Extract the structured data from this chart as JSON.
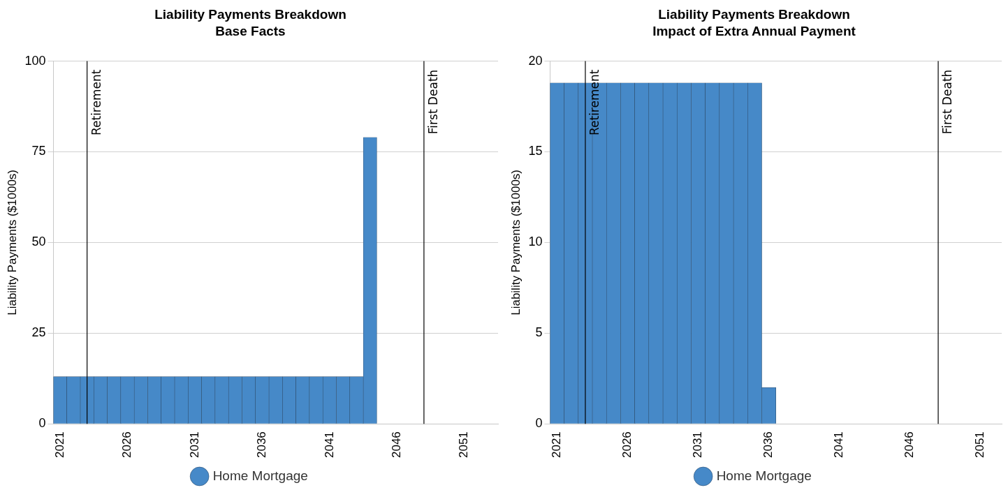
{
  "chart_data": [
    {
      "type": "bar",
      "title": "Liability Payments Breakdown",
      "subtitle": "Base Facts",
      "ylabel": "Liability Payments ($1000s)",
      "x": [
        2021,
        2022,
        2023,
        2024,
        2025,
        2026,
        2027,
        2028,
        2029,
        2030,
        2031,
        2032,
        2033,
        2034,
        2035,
        2036,
        2037,
        2038,
        2039,
        2040,
        2041,
        2042,
        2043,
        2044
      ],
      "series": [
        {
          "name": "Home Mortgage",
          "color": "#4689c8",
          "values": [
            13,
            13,
            13,
            13,
            13,
            13,
            13,
            13,
            13,
            13,
            13,
            13,
            13,
            13,
            13,
            13,
            13,
            13,
            13,
            13,
            13,
            13,
            13,
            79
          ]
        }
      ],
      "xlim": [
        2020.5,
        2053.5
      ],
      "xticks": [
        2021,
        2026,
        2031,
        2036,
        2041,
        2046,
        2051
      ],
      "ylim": [
        0,
        100
      ],
      "yticks": [
        0,
        25,
        50,
        75,
        100
      ],
      "grid": "y",
      "legend": "bottom",
      "ref_lines": [
        {
          "axis": "x",
          "value": 2023,
          "label": "Retirement"
        },
        {
          "axis": "x",
          "value": 2048,
          "label": "First Death"
        }
      ]
    },
    {
      "type": "bar",
      "title": "Liability Payments Breakdown",
      "subtitle": "Impact of Extra Annual Payment",
      "ylabel": "Liability Payments ($1000s)",
      "x": [
        2021,
        2022,
        2023,
        2024,
        2025,
        2026,
        2027,
        2028,
        2029,
        2030,
        2031,
        2032,
        2033,
        2034,
        2035,
        2036
      ],
      "series": [
        {
          "name": "Home Mortgage",
          "color": "#4689c8",
          "values": [
            18.8,
            18.8,
            18.8,
            18.8,
            18.8,
            18.8,
            18.8,
            18.8,
            18.8,
            18.8,
            18.8,
            18.8,
            18.8,
            18.8,
            18.8,
            2
          ]
        }
      ],
      "xlim": [
        2020.5,
        2052.5
      ],
      "xticks": [
        2021,
        2026,
        2031,
        2036,
        2041,
        2046,
        2051
      ],
      "ylim": [
        0,
        20
      ],
      "yticks": [
        0,
        5,
        10,
        15,
        20
      ],
      "grid": "y",
      "legend": "bottom",
      "ref_lines": [
        {
          "axis": "x",
          "value": 2023,
          "label": "Retirement"
        },
        {
          "axis": "x",
          "value": 2048,
          "label": "First Death"
        }
      ]
    }
  ]
}
